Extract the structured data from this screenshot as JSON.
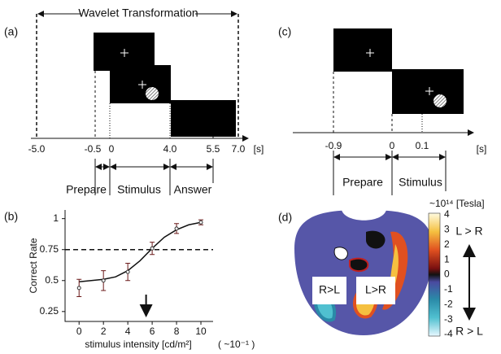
{
  "panel_labels": [
    "(a)",
    "(b)",
    "(c)",
    "(d)"
  ],
  "panel_a": {
    "title": "Wavelet Transformation",
    "ticks": [
      "-5.0",
      "-0.5",
      "0",
      "4.0",
      "5.5",
      "7.0"
    ],
    "unit": "[s]",
    "phases": [
      "Prepare",
      "Stimulus",
      "Answer"
    ]
  },
  "panel_c": {
    "ticks": [
      "-0.9",
      "0",
      "0.1"
    ],
    "unit": "[s]",
    "phases": [
      "Prepare",
      "Stimulus"
    ]
  },
  "panel_d": {
    "scale_title": "~10¹⁴ [Tesla]",
    "scale_ticks": [
      "4",
      "3",
      "2",
      "1",
      "0",
      "-1",
      "-2",
      "-3",
      "-4"
    ],
    "box_labels": [
      "R>L",
      "L>R"
    ],
    "direction_top": "L > R",
    "direction_bottom": "R > L"
  },
  "chart_data": {
    "type": "errorbar",
    "x_label": "stimulus intensity [cd/m²]",
    "x_unit": "( ~10⁻¹ )",
    "y_label": "Correct Rate",
    "xlim": [
      -1.15,
      11
    ],
    "ylim": [
      0.17,
      1.07
    ],
    "xticks": [
      0,
      2,
      4,
      6,
      8,
      10
    ],
    "yticks": [
      0.25,
      0.5,
      0.75,
      1
    ],
    "reference_line": 0.75,
    "arrow_x": 5.5,
    "series": [
      {
        "x": [
          0,
          2,
          4,
          6,
          8,
          10
        ],
        "values": [
          0.44,
          0.5,
          0.57,
          0.76,
          0.92,
          0.97
        ],
        "errors": [
          0.07,
          0.08,
          0.07,
          0.05,
          0.04,
          0.02
        ],
        "color": "#6b1a1a"
      },
      {
        "x": [
          0,
          1,
          2,
          3,
          4,
          5,
          6,
          7,
          8,
          9,
          10
        ],
        "values": [
          0.49,
          0.5,
          0.51,
          0.53,
          0.58,
          0.66,
          0.76,
          0.85,
          0.91,
          0.95,
          0.97
        ],
        "color": "#111111"
      }
    ]
  }
}
